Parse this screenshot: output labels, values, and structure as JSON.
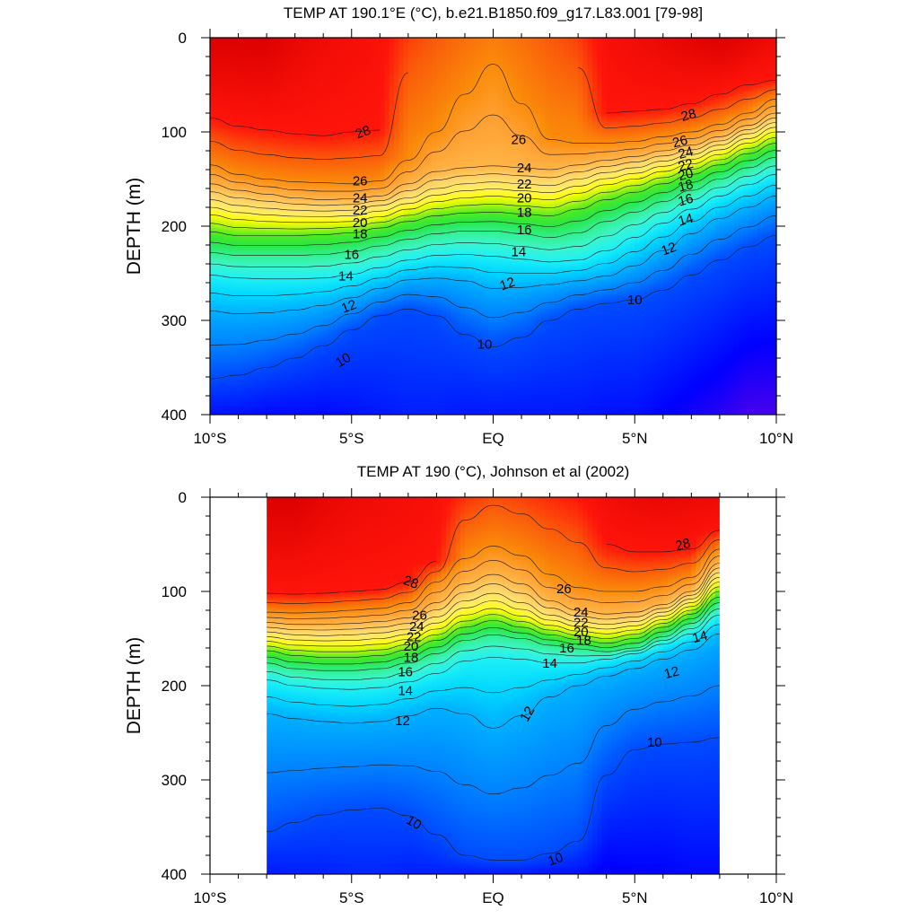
{
  "figure": {
    "panels": [
      {
        "id": "model",
        "title": "TEMP AT 190.1°E (°C), b.e21.B1850.f09_g17.L83.001 [79-98]",
        "ylabel": "DEPTH (m)",
        "xlim": [
          -10,
          10
        ],
        "ylim": [
          400,
          0
        ],
        "data_xrange": [
          -10,
          10
        ],
        "x_ticks": [
          {
            "value": -10,
            "label": "10°S"
          },
          {
            "value": -5,
            "label": "5°S"
          },
          {
            "value": 0,
            "label": "EQ"
          },
          {
            "value": 5,
            "label": "5°N"
          },
          {
            "value": 10,
            "label": "10°N"
          }
        ],
        "y_ticks": [
          {
            "value": 0,
            "label": "0"
          },
          {
            "value": 100,
            "label": "100"
          },
          {
            "value": 200,
            "label": "200"
          },
          {
            "value": 300,
            "label": "300"
          },
          {
            "value": 400,
            "label": "400"
          }
        ],
        "contour_labels": [
          {
            "text": "28",
            "x": -4.6,
            "y": 100,
            "angle": -20
          },
          {
            "text": "28",
            "x": 6.9,
            "y": 82,
            "angle": -15
          },
          {
            "text": "26",
            "x": -4.7,
            "y": 152
          },
          {
            "text": "26",
            "x": 0.9,
            "y": 108
          },
          {
            "text": "26",
            "x": 6.6,
            "y": 110,
            "angle": -15
          },
          {
            "text": "24",
            "x": -4.7,
            "y": 170
          },
          {
            "text": "24",
            "x": 1.1,
            "y": 138
          },
          {
            "text": "24",
            "x": 6.8,
            "y": 122,
            "angle": -15
          },
          {
            "text": "22",
            "x": -4.7,
            "y": 183
          },
          {
            "text": "22",
            "x": 1.1,
            "y": 155
          },
          {
            "text": "22",
            "x": 6.8,
            "y": 135,
            "angle": -15
          },
          {
            "text": "20",
            "x": -4.7,
            "y": 196
          },
          {
            "text": "20",
            "x": 1.1,
            "y": 170
          },
          {
            "text": "20",
            "x": 6.8,
            "y": 145,
            "angle": -15
          },
          {
            "text": "18",
            "x": -4.7,
            "y": 208
          },
          {
            "text": "18",
            "x": 1.1,
            "y": 185
          },
          {
            "text": "18",
            "x": 6.8,
            "y": 157,
            "angle": -15
          },
          {
            "text": "16",
            "x": -5.0,
            "y": 230
          },
          {
            "text": "16",
            "x": 1.1,
            "y": 204
          },
          {
            "text": "16",
            "x": 6.8,
            "y": 172,
            "angle": -15
          },
          {
            "text": "14",
            "x": -5.2,
            "y": 253
          },
          {
            "text": "14",
            "x": 0.9,
            "y": 227
          },
          {
            "text": "14",
            "x": 6.8,
            "y": 193,
            "angle": -15
          },
          {
            "text": "12",
            "x": -5.1,
            "y": 285,
            "angle": -20
          },
          {
            "text": "12",
            "x": 0.5,
            "y": 261,
            "angle": -20
          },
          {
            "text": "12",
            "x": 6.2,
            "y": 224,
            "angle": -20
          },
          {
            "text": "10",
            "x": -5.3,
            "y": 342,
            "angle": -30
          },
          {
            "text": "10",
            "x": -0.3,
            "y": 325
          },
          {
            "text": "10",
            "x": 5.0,
            "y": 278
          }
        ]
      },
      {
        "id": "obs",
        "title": "TEMP AT 190 (°C), Johnson et al (2002)",
        "ylabel": "DEPTH (m)",
        "xlim": [
          -10,
          10
        ],
        "ylim": [
          400,
          0
        ],
        "data_xrange": [
          -8,
          8
        ],
        "x_ticks": [
          {
            "value": -10,
            "label": "10°S"
          },
          {
            "value": -5,
            "label": "5°S"
          },
          {
            "value": 0,
            "label": "EQ"
          },
          {
            "value": 5,
            "label": "5°N"
          },
          {
            "value": 10,
            "label": "10°N"
          }
        ],
        "y_ticks": [
          {
            "value": 0,
            "label": "0"
          },
          {
            "value": 100,
            "label": "100"
          },
          {
            "value": 200,
            "label": "200"
          },
          {
            "value": 300,
            "label": "300"
          },
          {
            "value": 400,
            "label": "400"
          }
        ],
        "contour_labels": [
          {
            "text": "28",
            "x": -2.9,
            "y": 90,
            "angle": 20
          },
          {
            "text": "28",
            "x": 6.7,
            "y": 50,
            "angle": -15
          },
          {
            "text": "26",
            "x": -2.6,
            "y": 125
          },
          {
            "text": "26",
            "x": 2.5,
            "y": 97
          },
          {
            "text": "24",
            "x": -2.7,
            "y": 137
          },
          {
            "text": "24",
            "x": 3.1,
            "y": 122
          },
          {
            "text": "22",
            "x": -2.8,
            "y": 148
          },
          {
            "text": "22",
            "x": 3.1,
            "y": 133
          },
          {
            "text": "20",
            "x": -2.9,
            "y": 158
          },
          {
            "text": "20",
            "x": 3.1,
            "y": 143
          },
          {
            "text": "18",
            "x": -2.9,
            "y": 170
          },
          {
            "text": "18",
            "x": 3.2,
            "y": 152
          },
          {
            "text": "16",
            "x": -3.1,
            "y": 185
          },
          {
            "text": "16",
            "x": 2.6,
            "y": 160
          },
          {
            "text": "14",
            "x": -3.1,
            "y": 205
          },
          {
            "text": "14",
            "x": 2.0,
            "y": 176
          },
          {
            "text": "14",
            "x": 7.3,
            "y": 148,
            "angle": -15
          },
          {
            "text": "12",
            "x": -3.2,
            "y": 237
          },
          {
            "text": "12",
            "x": 1.2,
            "y": 230,
            "angle": -60
          },
          {
            "text": "12",
            "x": 6.3,
            "y": 186,
            "angle": -15
          },
          {
            "text": "10",
            "x": -2.8,
            "y": 345,
            "angle": 30
          },
          {
            "text": "10",
            "x": 2.2,
            "y": 384,
            "angle": -20
          },
          {
            "text": "10",
            "x": 5.7,
            "y": 260
          }
        ]
      }
    ]
  },
  "chart_data": [
    {
      "type": "contour",
      "title": "TEMP AT 190.1°E (°C), b.e21.B1850.f09_g17.L83.001 [79-98]",
      "xlabel": "",
      "ylabel": "DEPTH (m)",
      "xlim": [
        -10,
        10
      ],
      "ylim": [
        400,
        0
      ],
      "x_ticks": [
        "10°S",
        "5°S",
        "EQ",
        "5°N",
        "10°N"
      ],
      "y_ticks": [
        0,
        100,
        200,
        300,
        400
      ],
      "contour_interval": 1,
      "labeled_levels": [
        10,
        12,
        14,
        16,
        18,
        20,
        22,
        24,
        26,
        28
      ],
      "x": [
        -10,
        -9,
        -8,
        -7,
        -6,
        -5,
        -4,
        -3,
        -2,
        -1,
        0,
        1,
        2,
        3,
        4,
        5,
        6,
        7,
        8,
        9,
        10
      ],
      "isotherm_depths": [
        {
          "level": 28,
          "depth": [
            85,
            94,
            98,
            102,
            104,
            100,
            98,
            null,
            null,
            null,
            null,
            null,
            null,
            null,
            80,
            78,
            76,
            70,
            60,
            50,
            45
          ]
        },
        {
          "level": 26,
          "depth": [
            135,
            145,
            150,
            153,
            154,
            155,
            152,
            130,
            100,
            60,
            28,
            70,
            108,
            112,
            112,
            110,
            105,
            100,
            92,
            80,
            65
          ]
        },
        {
          "level": 24,
          "depth": [
            155,
            162,
            166,
            170,
            172,
            171,
            168,
            155,
            142,
            138,
            136,
            138,
            140,
            135,
            130,
            126,
            120,
            114,
            105,
            93,
            80
          ]
        },
        {
          "level": 22,
          "depth": [
            172,
            178,
            181,
            183,
            184,
            183,
            178,
            170,
            160,
            155,
            153,
            155,
            157,
            150,
            143,
            138,
            131,
            124,
            114,
            102,
            90
          ]
        },
        {
          "level": 20,
          "depth": [
            188,
            193,
            195,
            196,
            196,
            195,
            190,
            182,
            174,
            170,
            168,
            170,
            172,
            165,
            156,
            150,
            142,
            134,
            124,
            112,
            100
          ]
        },
        {
          "level": 18,
          "depth": [
            206,
            210,
            210,
            210,
            209,
            207,
            202,
            195,
            189,
            186,
            185,
            187,
            189,
            182,
            172,
            164,
            155,
            145,
            135,
            123,
            112
          ]
        },
        {
          "level": 16,
          "depth": [
            228,
            231,
            231,
            231,
            230,
            227,
            221,
            214,
            208,
            205,
            205,
            208,
            212,
            207,
            195,
            185,
            174,
            162,
            150,
            138,
            127
          ]
        },
        {
          "level": 14,
          "depth": [
            252,
            255,
            256,
            256,
            255,
            251,
            244,
            236,
            231,
            230,
            232,
            235,
            238,
            236,
            226,
            212,
            197,
            182,
            168,
            156,
            145
          ]
        },
        {
          "level": 12,
          "depth": [
            290,
            293,
            292,
            289,
            284,
            276,
            266,
            257,
            255,
            258,
            266,
            265,
            262,
            258,
            253,
            242,
            226,
            208,
            192,
            180,
            168
          ]
        },
        {
          "level": 10,
          "depth": [
            362,
            358,
            350,
            340,
            327,
            310,
            295,
            288,
            295,
            315,
            328,
            318,
            300,
            288,
            282,
            278,
            268,
            252,
            236,
            222,
            210
          ]
        }
      ]
    },
    {
      "type": "contour",
      "title": "TEMP AT 190 (°C), Johnson et al (2002)",
      "xlabel": "",
      "ylabel": "DEPTH (m)",
      "xlim": [
        -10,
        10
      ],
      "ylim": [
        400,
        0
      ],
      "data_xrange": [
        -8,
        8
      ],
      "x_ticks": [
        "10°S",
        "5°S",
        "EQ",
        "5°N",
        "10°N"
      ],
      "y_ticks": [
        0,
        100,
        200,
        300,
        400
      ],
      "contour_interval": 1,
      "labeled_levels": [
        10,
        12,
        14,
        16,
        18,
        20,
        22,
        24,
        26,
        28
      ],
      "x": [
        -8,
        -7,
        -6,
        -5,
        -4,
        -3,
        -2,
        -1,
        0,
        1,
        2,
        3,
        4,
        5,
        6,
        7,
        8
      ],
      "isotherm_depths": [
        {
          "level": 28,
          "depth": [
            102,
            103,
            102,
            100,
            98,
            90,
            68,
            null,
            null,
            null,
            null,
            null,
            50,
            58,
            58,
            55,
            35
          ]
        },
        {
          "level": 26,
          "depth": [
            122,
            123,
            122,
            120,
            118,
            112,
            90,
            65,
            52,
            62,
            82,
            96,
            100,
            100,
            95,
            85,
            55
          ]
        },
        {
          "level": 24,
          "depth": [
            133,
            135,
            135,
            134,
            132,
            128,
            112,
            92,
            82,
            92,
            110,
            120,
            124,
            122,
            114,
            100,
            70
          ]
        },
        {
          "level": 22,
          "depth": [
            143,
            146,
            147,
            146,
            144,
            140,
            127,
            110,
            102,
            112,
            125,
            132,
            135,
            132,
            122,
            108,
            80
          ]
        },
        {
          "level": 20,
          "depth": [
            153,
            157,
            158,
            158,
            156,
            151,
            140,
            125,
            118,
            126,
            136,
            142,
            145,
            141,
            130,
            116,
            90
          ]
        },
        {
          "level": 18,
          "depth": [
            163,
            168,
            170,
            170,
            168,
            162,
            152,
            138,
            131,
            138,
            146,
            151,
            155,
            150,
            138,
            124,
            100
          ]
        },
        {
          "level": 16,
          "depth": [
            176,
            182,
            184,
            184,
            182,
            176,
            166,
            152,
            146,
            150,
            157,
            161,
            164,
            160,
            148,
            134,
            112
          ]
        },
        {
          "level": 14,
          "depth": [
            194,
            200,
            203,
            204,
            202,
            196,
            187,
            174,
            170,
            172,
            176,
            176,
            172,
            166,
            156,
            145,
            125
          ]
        },
        {
          "level": 12,
          "depth": [
            230,
            235,
            238,
            240,
            238,
            232,
            224,
            230,
            245,
            232,
            212,
            200,
            190,
            182,
            172,
            162,
            145
          ]
        },
        {
          "level": 10,
          "depth": [
            355,
            345,
            337,
            332,
            330,
            338,
            358,
            380,
            385,
            385,
            378,
            365,
            295,
            268,
            262,
            260,
            255
          ]
        }
      ]
    }
  ]
}
